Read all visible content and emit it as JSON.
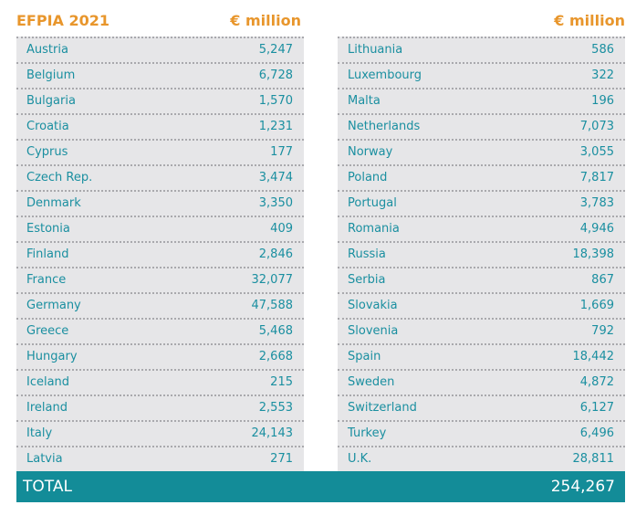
{
  "header": {
    "title": "EFPIA 2021",
    "unit_left": "€ million",
    "unit_right": "€ million"
  },
  "left_column": [
    {
      "country": "Austria",
      "value": "5,247"
    },
    {
      "country": "Belgium",
      "value": "6,728"
    },
    {
      "country": "Bulgaria",
      "value": "1,570"
    },
    {
      "country": "Croatia",
      "value": "1,231"
    },
    {
      "country": "Cyprus",
      "value": "177"
    },
    {
      "country": "Czech Rep.",
      "value": "3,474"
    },
    {
      "country": "Denmark",
      "value": "3,350"
    },
    {
      "country": "Estonia",
      "value": "409"
    },
    {
      "country": "Finland",
      "value": "2,846"
    },
    {
      "country": "France",
      "value": "32,077"
    },
    {
      "country": "Germany",
      "value": "47,588"
    },
    {
      "country": "Greece",
      "value": "5,468"
    },
    {
      "country": "Hungary",
      "value": "2,668"
    },
    {
      "country": "Iceland",
      "value": "215"
    },
    {
      "country": "Ireland",
      "value": "2,553"
    },
    {
      "country": "Italy",
      "value": "24,143"
    },
    {
      "country": "Latvia",
      "value": "271"
    }
  ],
  "right_column": [
    {
      "country": "Lithuania",
      "value": "586"
    },
    {
      "country": "Luxembourg",
      "value": "322"
    },
    {
      "country": "Malta",
      "value": "196"
    },
    {
      "country": "Netherlands",
      "value": "7,073"
    },
    {
      "country": "Norway",
      "value": "3,055"
    },
    {
      "country": "Poland",
      "value": "7,817"
    },
    {
      "country": "Portugal",
      "value": "3,783"
    },
    {
      "country": "Romania",
      "value": "4,946"
    },
    {
      "country": "Russia",
      "value": "18,398"
    },
    {
      "country": "Serbia",
      "value": "867"
    },
    {
      "country": "Slovakia",
      "value": "1,669"
    },
    {
      "country": "Slovenia",
      "value": "792"
    },
    {
      "country": "Spain",
      "value": "18,442"
    },
    {
      "country": "Sweden",
      "value": "4,872"
    },
    {
      "country": "Switzerland",
      "value": "6,127"
    },
    {
      "country": "Turkey",
      "value": "6,496"
    },
    {
      "country": "U.K.",
      "value": "28,811"
    }
  ],
  "total": {
    "label": "TOTAL",
    "value": "254,267"
  },
  "colors": {
    "accent_orange": "#e8962c",
    "teal_text": "#1a8fa0",
    "total_bar": "#138c98",
    "panel_bg": "#e6e6e8"
  }
}
